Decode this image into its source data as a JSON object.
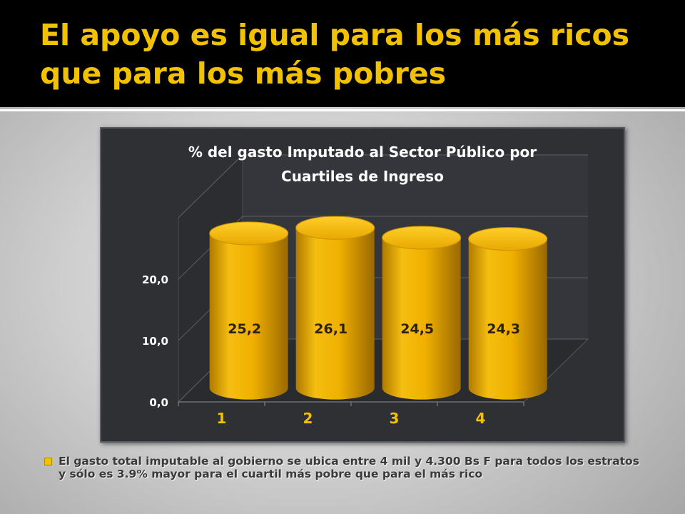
{
  "slide": {
    "title_line1": "El apoyo es igual para los más ricos",
    "title_line2": "que para los más pobres",
    "bullet_text": "El gasto total imputable al gobierno se ubica entre 4 mil y 4.300 Bs F para todos los estratos y sólo es 3.9% mayor para  el cuartil más pobre  que para el más rico"
  },
  "colors": {
    "title": "#f2c200",
    "bar": "#f0b400",
    "panel": "#2f3034"
  },
  "chart_data": {
    "type": "bar",
    "title_line1": "% del gasto Imputado al Sector Público por",
    "title_line2": "Cuartiles de Ingreso",
    "categories": [
      "1",
      "2",
      "3",
      "4"
    ],
    "values": [
      25.2,
      26.1,
      24.5,
      24.3
    ],
    "value_labels": [
      "25,2",
      "26,1",
      "24,5",
      "24,3"
    ],
    "y_ticks": [
      0,
      10,
      20
    ],
    "y_tick_labels": [
      "0,0",
      "10,0",
      "20,0"
    ],
    "ylim": [
      0,
      30
    ],
    "grid": true,
    "legend": "none",
    "style": "3d-cylinder"
  }
}
